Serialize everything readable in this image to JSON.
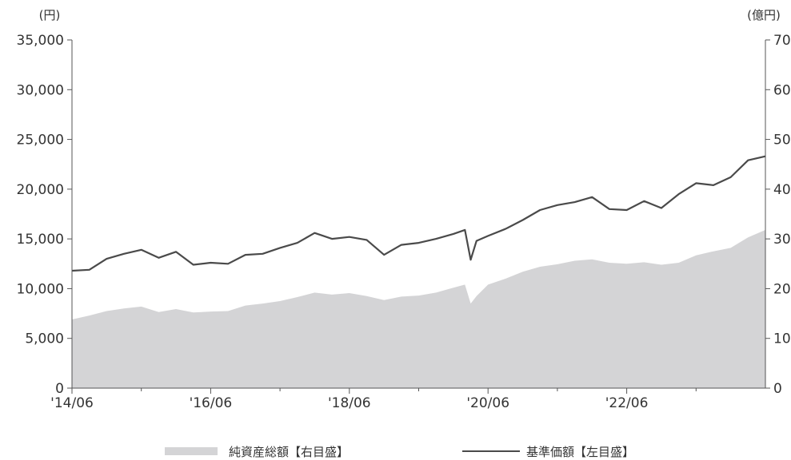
{
  "chart_data": {
    "type": "area",
    "title": "",
    "y_left_unit": "(円)",
    "y_right_unit": "(億円)",
    "y_left_range": [
      0,
      35000
    ],
    "y_right_range": [
      0,
      70
    ],
    "y_left_ticks": [
      "0",
      "5,000",
      "10,000",
      "15,000",
      "20,000",
      "25,000",
      "30,000",
      "35,000"
    ],
    "y_right_ticks": [
      "0",
      "10",
      "20",
      "30",
      "40",
      "50",
      "60",
      "70"
    ],
    "x_ticks": [
      "'14/06",
      "'16/06",
      "'18/06",
      "'20/06",
      "'22/06"
    ],
    "x_range": [
      "2014-06",
      "2024-06"
    ],
    "grid": false,
    "legend_position": "bottom",
    "series": [
      {
        "name": "純資産総額【右目盛】",
        "type": "area",
        "axis": "right",
        "color": "#d4d4d6",
        "x": [
          "2014-06",
          "2014-09",
          "2014-12",
          "2015-03",
          "2015-06",
          "2015-09",
          "2015-12",
          "2016-03",
          "2016-06",
          "2016-09",
          "2016-12",
          "2017-03",
          "2017-06",
          "2017-09",
          "2017-12",
          "2018-03",
          "2018-06",
          "2018-09",
          "2018-12",
          "2019-03",
          "2019-06",
          "2019-09",
          "2019-12",
          "2020-02",
          "2020-03",
          "2020-04",
          "2020-06",
          "2020-09",
          "2020-12",
          "2021-03",
          "2021-06",
          "2021-09",
          "2021-12",
          "2022-03",
          "2022-06",
          "2022-09",
          "2022-12",
          "2023-03",
          "2023-06",
          "2023-09",
          "2023-12",
          "2024-03",
          "2024-06"
        ],
        "values": [
          13.8,
          14.6,
          15.5,
          16.0,
          16.4,
          15.3,
          15.9,
          15.2,
          15.4,
          15.5,
          16.6,
          17.0,
          17.5,
          18.3,
          19.2,
          18.8,
          19.1,
          18.5,
          17.7,
          18.4,
          18.6,
          19.2,
          20.2,
          20.8,
          17.0,
          18.5,
          20.8,
          22.0,
          23.4,
          24.4,
          24.9,
          25.6,
          25.9,
          25.2,
          25.0,
          25.3,
          24.8,
          25.2,
          26.7,
          27.5,
          28.2,
          30.3,
          31.8
        ]
      },
      {
        "name": "基準価額【左目盛】",
        "type": "line",
        "axis": "left",
        "color": "#4a4a4a",
        "x": [
          "2014-06",
          "2014-09",
          "2014-12",
          "2015-03",
          "2015-06",
          "2015-09",
          "2015-12",
          "2016-03",
          "2016-06",
          "2016-09",
          "2016-12",
          "2017-03",
          "2017-06",
          "2017-09",
          "2017-12",
          "2018-03",
          "2018-06",
          "2018-09",
          "2018-12",
          "2019-03",
          "2019-06",
          "2019-09",
          "2019-12",
          "2020-02",
          "2020-03",
          "2020-04",
          "2020-06",
          "2020-09",
          "2020-12",
          "2021-03",
          "2021-06",
          "2021-09",
          "2021-12",
          "2022-03",
          "2022-06",
          "2022-09",
          "2022-12",
          "2023-03",
          "2023-06",
          "2023-09",
          "2023-12",
          "2024-03",
          "2024-06"
        ],
        "values": [
          11800,
          11900,
          13000,
          13500,
          13900,
          13100,
          13700,
          12400,
          12600,
          12500,
          13400,
          13500,
          14100,
          14600,
          15600,
          15000,
          15200,
          14900,
          13400,
          14400,
          14600,
          15000,
          15500,
          15900,
          12900,
          14800,
          15300,
          16000,
          16900,
          17900,
          18400,
          18700,
          19200,
          18000,
          17900,
          18800,
          18100,
          19500,
          20600,
          20400,
          21200,
          22900,
          23300
        ]
      }
    ]
  }
}
